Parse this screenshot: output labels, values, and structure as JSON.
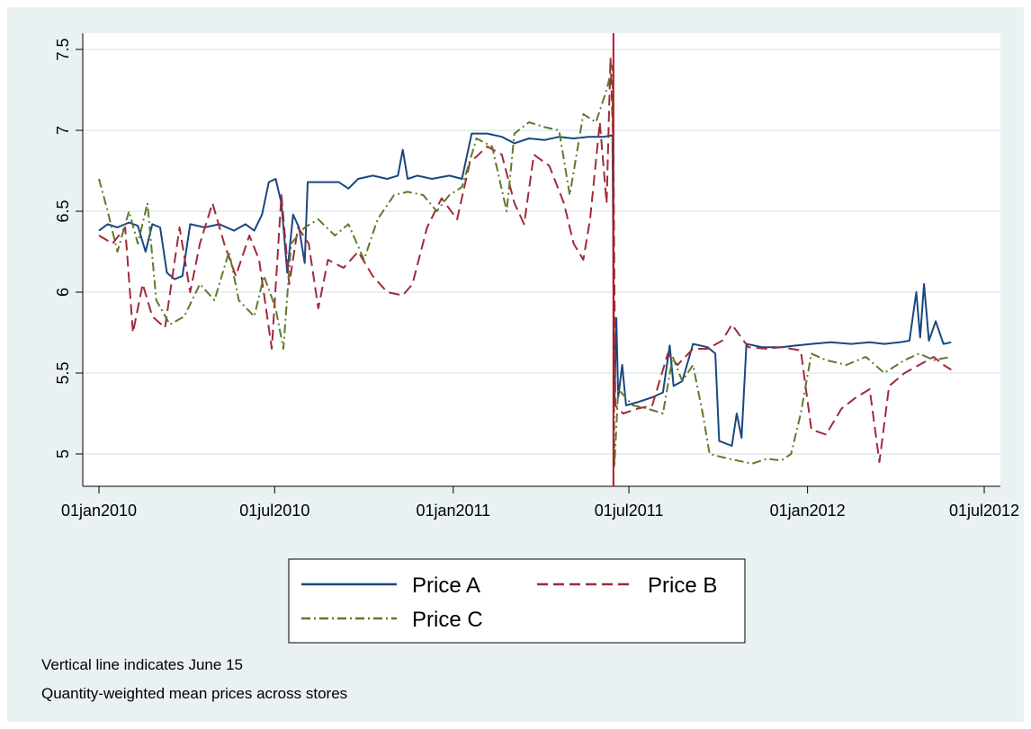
{
  "chart_data": {
    "type": "line",
    "x_scale": "date",
    "xlim": [
      "2010-01-01",
      "2012-07-01"
    ],
    "ylim": [
      4.8,
      7.6
    ],
    "x_ticks": [
      "2010-01-01",
      "2010-07-01",
      "2011-01-01",
      "2011-07-01",
      "2012-01-01",
      "2012-07-01"
    ],
    "x_tick_labels": [
      "01jan2010",
      "01jul2010",
      "01jan2011",
      "01jul2011",
      "01jan2012",
      "01jul2012"
    ],
    "y_ticks": [
      5,
      5.5,
      6,
      6.5,
      7,
      7.5
    ],
    "y_tick_labels": [
      "5",
      "5.5",
      "6",
      "6.5",
      "7",
      "7.5"
    ],
    "grid": "horizontal",
    "legend_position": "bottom",
    "vertical_line": {
      "x": "2011-06-15",
      "color": "#c0102a"
    },
    "series": [
      {
        "name": "Price A",
        "color": "#1a4780",
        "dash": "solid",
        "points": [
          [
            "2010-01-01",
            6.38
          ],
          [
            "2010-01-10",
            6.42
          ],
          [
            "2010-01-20",
            6.4
          ],
          [
            "2010-02-01",
            6.43
          ],
          [
            "2010-02-10",
            6.41
          ],
          [
            "2010-02-18",
            6.25
          ],
          [
            "2010-02-25",
            6.42
          ],
          [
            "2010-03-05",
            6.4
          ],
          [
            "2010-03-12",
            6.12
          ],
          [
            "2010-03-20",
            6.08
          ],
          [
            "2010-03-28",
            6.1
          ],
          [
            "2010-04-05",
            6.42
          ],
          [
            "2010-04-20",
            6.4
          ],
          [
            "2010-05-05",
            6.42
          ],
          [
            "2010-05-20",
            6.38
          ],
          [
            "2010-06-01",
            6.42
          ],
          [
            "2010-06-10",
            6.38
          ],
          [
            "2010-06-18",
            6.48
          ],
          [
            "2010-06-25",
            6.68
          ],
          [
            "2010-07-02",
            6.7
          ],
          [
            "2010-07-08",
            6.55
          ],
          [
            "2010-07-14",
            6.12
          ],
          [
            "2010-07-20",
            6.48
          ],
          [
            "2010-07-26",
            6.4
          ],
          [
            "2010-08-01",
            6.18
          ],
          [
            "2010-08-04",
            6.68
          ],
          [
            "2010-08-20",
            6.68
          ],
          [
            "2010-09-05",
            6.68
          ],
          [
            "2010-09-15",
            6.64
          ],
          [
            "2010-09-25",
            6.7
          ],
          [
            "2010-10-10",
            6.72
          ],
          [
            "2010-10-25",
            6.7
          ],
          [
            "2010-11-05",
            6.72
          ],
          [
            "2010-11-10",
            6.88
          ],
          [
            "2010-11-15",
            6.7
          ],
          [
            "2010-11-25",
            6.72
          ],
          [
            "2010-12-10",
            6.7
          ],
          [
            "2010-12-28",
            6.72
          ],
          [
            "2011-01-10",
            6.7
          ],
          [
            "2011-01-20",
            6.98
          ],
          [
            "2011-02-05",
            6.98
          ],
          [
            "2011-02-20",
            6.96
          ],
          [
            "2011-03-05",
            6.92
          ],
          [
            "2011-03-20",
            6.95
          ],
          [
            "2011-04-05",
            6.94
          ],
          [
            "2011-04-20",
            6.96
          ],
          [
            "2011-05-05",
            6.95
          ],
          [
            "2011-05-20",
            6.96
          ],
          [
            "2011-06-05",
            6.96
          ],
          [
            "2011-06-14",
            6.97
          ],
          [
            "2011-06-16",
            5.3
          ],
          [
            "2011-06-18",
            5.84
          ],
          [
            "2011-06-20",
            5.35
          ],
          [
            "2011-06-24",
            5.55
          ],
          [
            "2011-06-28",
            5.3
          ],
          [
            "2011-07-10",
            5.32
          ],
          [
            "2011-07-25",
            5.35
          ],
          [
            "2011-08-05",
            5.38
          ],
          [
            "2011-08-12",
            5.67
          ],
          [
            "2011-08-16",
            5.42
          ],
          [
            "2011-08-25",
            5.45
          ],
          [
            "2011-09-05",
            5.68
          ],
          [
            "2011-09-20",
            5.66
          ],
          [
            "2011-09-28",
            5.62
          ],
          [
            "2011-10-02",
            5.08
          ],
          [
            "2011-10-15",
            5.05
          ],
          [
            "2011-10-20",
            5.25
          ],
          [
            "2011-10-25",
            5.1
          ],
          [
            "2011-10-30",
            5.68
          ],
          [
            "2011-11-15",
            5.66
          ],
          [
            "2011-12-05",
            5.66
          ],
          [
            "2011-12-20",
            5.67
          ],
          [
            "2012-01-05",
            5.68
          ],
          [
            "2012-01-25",
            5.69
          ],
          [
            "2012-02-15",
            5.68
          ],
          [
            "2012-03-05",
            5.69
          ],
          [
            "2012-03-20",
            5.68
          ],
          [
            "2012-04-05",
            5.69
          ],
          [
            "2012-04-15",
            5.7
          ],
          [
            "2012-04-22",
            6.0
          ],
          [
            "2012-04-26",
            5.72
          ],
          [
            "2012-04-30",
            6.05
          ],
          [
            "2012-05-05",
            5.7
          ],
          [
            "2012-05-12",
            5.82
          ],
          [
            "2012-05-20",
            5.68
          ],
          [
            "2012-05-28",
            5.69
          ]
        ]
      },
      {
        "name": "Price B",
        "color": "#a02a3a",
        "dash": "long-dash",
        "points": [
          [
            "2010-01-01",
            6.35
          ],
          [
            "2010-01-15",
            6.3
          ],
          [
            "2010-01-28",
            6.4
          ],
          [
            "2010-02-05",
            5.75
          ],
          [
            "2010-02-15",
            6.05
          ],
          [
            "2010-02-25",
            5.85
          ],
          [
            "2010-03-10",
            5.78
          ],
          [
            "2010-03-25",
            6.4
          ],
          [
            "2010-04-05",
            6.0
          ],
          [
            "2010-04-15",
            6.3
          ],
          [
            "2010-04-28",
            6.55
          ],
          [
            "2010-05-10",
            6.3
          ],
          [
            "2010-05-22",
            6.1
          ],
          [
            "2010-06-05",
            6.35
          ],
          [
            "2010-06-15",
            6.2
          ],
          [
            "2010-06-28",
            5.65
          ],
          [
            "2010-07-08",
            6.6
          ],
          [
            "2010-07-16",
            6.05
          ],
          [
            "2010-07-25",
            6.4
          ],
          [
            "2010-08-05",
            6.3
          ],
          [
            "2010-08-15",
            5.9
          ],
          [
            "2010-08-25",
            6.2
          ],
          [
            "2010-09-10",
            6.15
          ],
          [
            "2010-09-25",
            6.25
          ],
          [
            "2010-10-10",
            6.1
          ],
          [
            "2010-10-25",
            6.0
          ],
          [
            "2010-11-10",
            5.98
          ],
          [
            "2010-11-20",
            6.05
          ],
          [
            "2010-12-05",
            6.4
          ],
          [
            "2010-12-20",
            6.58
          ],
          [
            "2011-01-05",
            6.45
          ],
          [
            "2011-01-18",
            6.8
          ],
          [
            "2011-02-05",
            6.9
          ],
          [
            "2011-02-20",
            6.85
          ],
          [
            "2011-03-05",
            6.55
          ],
          [
            "2011-03-15",
            6.42
          ],
          [
            "2011-03-25",
            6.85
          ],
          [
            "2011-04-10",
            6.78
          ],
          [
            "2011-04-25",
            6.55
          ],
          [
            "2011-05-05",
            6.3
          ],
          [
            "2011-05-15",
            6.2
          ],
          [
            "2011-05-22",
            6.45
          ],
          [
            "2011-06-01",
            7.05
          ],
          [
            "2011-06-08",
            6.55
          ],
          [
            "2011-06-12",
            7.45
          ],
          [
            "2011-06-15",
            6.9
          ],
          [
            "2011-06-17",
            5.3
          ],
          [
            "2011-06-25",
            5.25
          ],
          [
            "2011-07-10",
            5.28
          ],
          [
            "2011-07-25",
            5.3
          ],
          [
            "2011-08-10",
            5.62
          ],
          [
            "2011-08-20",
            5.55
          ],
          [
            "2011-09-05",
            5.65
          ],
          [
            "2011-09-20",
            5.65
          ],
          [
            "2011-10-05",
            5.7
          ],
          [
            "2011-10-15",
            5.8
          ],
          [
            "2011-11-01",
            5.66
          ],
          [
            "2011-11-20",
            5.65
          ],
          [
            "2011-12-05",
            5.66
          ],
          [
            "2011-12-25",
            5.64
          ],
          [
            "2012-01-05",
            5.15
          ],
          [
            "2012-01-20",
            5.12
          ],
          [
            "2012-02-05",
            5.28
          ],
          [
            "2012-02-20",
            5.35
          ],
          [
            "2012-03-05",
            5.4
          ],
          [
            "2012-03-15",
            4.95
          ],
          [
            "2012-03-25",
            5.42
          ],
          [
            "2012-04-10",
            5.5
          ],
          [
            "2012-04-25",
            5.55
          ],
          [
            "2012-05-10",
            5.6
          ],
          [
            "2012-05-20",
            5.55
          ],
          [
            "2012-05-28",
            5.52
          ]
        ]
      },
      {
        "name": "Price C",
        "color": "#5f7a2a",
        "dash": "dash-dot",
        "points": [
          [
            "2010-01-01",
            6.7
          ],
          [
            "2010-01-10",
            6.5
          ],
          [
            "2010-01-20",
            6.25
          ],
          [
            "2010-02-01",
            6.5
          ],
          [
            "2010-02-10",
            6.3
          ],
          [
            "2010-02-20",
            6.55
          ],
          [
            "2010-03-01",
            5.95
          ],
          [
            "2010-03-15",
            5.8
          ],
          [
            "2010-03-30",
            5.85
          ],
          [
            "2010-04-15",
            6.05
          ],
          [
            "2010-04-30",
            5.95
          ],
          [
            "2010-05-15",
            6.25
          ],
          [
            "2010-05-25",
            5.95
          ],
          [
            "2010-06-10",
            5.85
          ],
          [
            "2010-06-20",
            6.1
          ],
          [
            "2010-07-02",
            5.9
          ],
          [
            "2010-07-10",
            5.65
          ],
          [
            "2010-07-18",
            6.3
          ],
          [
            "2010-08-01",
            6.4
          ],
          [
            "2010-08-15",
            6.45
          ],
          [
            "2010-09-01",
            6.35
          ],
          [
            "2010-09-15",
            6.42
          ],
          [
            "2010-10-01",
            6.2
          ],
          [
            "2010-10-15",
            6.45
          ],
          [
            "2010-11-01",
            6.6
          ],
          [
            "2010-11-15",
            6.62
          ],
          [
            "2010-12-01",
            6.6
          ],
          [
            "2010-12-15",
            6.5
          ],
          [
            "2010-12-28",
            6.6
          ],
          [
            "2011-01-10",
            6.65
          ],
          [
            "2011-01-25",
            6.95
          ],
          [
            "2011-02-10",
            6.9
          ],
          [
            "2011-02-25",
            6.5
          ],
          [
            "2011-03-05",
            6.98
          ],
          [
            "2011-03-20",
            7.05
          ],
          [
            "2011-04-05",
            7.02
          ],
          [
            "2011-04-20",
            7.0
          ],
          [
            "2011-05-01",
            6.6
          ],
          [
            "2011-05-15",
            7.1
          ],
          [
            "2011-05-28",
            7.05
          ],
          [
            "2011-06-08",
            7.25
          ],
          [
            "2011-06-14",
            7.4
          ],
          [
            "2011-06-16",
            4.92
          ],
          [
            "2011-06-20",
            5.4
          ],
          [
            "2011-07-05",
            5.3
          ],
          [
            "2011-07-20",
            5.28
          ],
          [
            "2011-08-05",
            5.25
          ],
          [
            "2011-08-15",
            5.6
          ],
          [
            "2011-08-25",
            5.45
          ],
          [
            "2011-09-05",
            5.55
          ],
          [
            "2011-09-15",
            5.25
          ],
          [
            "2011-09-22",
            5.0
          ],
          [
            "2011-10-05",
            4.98
          ],
          [
            "2011-10-20",
            4.96
          ],
          [
            "2011-11-05",
            4.94
          ],
          [
            "2011-11-20",
            4.97
          ],
          [
            "2011-12-05",
            4.96
          ],
          [
            "2011-12-15",
            5.0
          ],
          [
            "2011-12-25",
            5.25
          ],
          [
            "2012-01-05",
            5.62
          ],
          [
            "2012-01-20",
            5.58
          ],
          [
            "2012-02-10",
            5.55
          ],
          [
            "2012-03-01",
            5.6
          ],
          [
            "2012-03-20",
            5.5
          ],
          [
            "2012-04-10",
            5.58
          ],
          [
            "2012-04-25",
            5.62
          ],
          [
            "2012-05-10",
            5.58
          ],
          [
            "2012-05-28",
            5.6
          ]
        ]
      }
    ]
  },
  "notes": [
    "Vertical line indicates June 15",
    "Quantity-weighted mean prices across stores"
  ]
}
